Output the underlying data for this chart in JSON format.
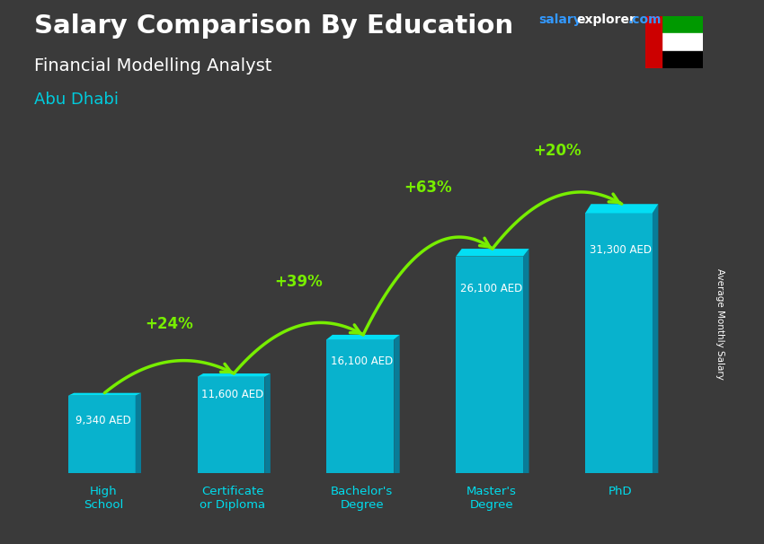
{
  "title": "Salary Comparison By Education",
  "subtitle": "Financial Modelling Analyst",
  "city": "Abu Dhabi",
  "ylabel": "Average Monthly Salary",
  "categories": [
    "High\nSchool",
    "Certificate\nor Diploma",
    "Bachelor's\nDegree",
    "Master's\nDegree",
    "PhD"
  ],
  "values": [
    9340,
    11600,
    16100,
    26100,
    31300
  ],
  "value_labels": [
    "9,340 AED",
    "11,600 AED",
    "16,100 AED",
    "26,100 AED",
    "31,300 AED"
  ],
  "pct_labels": [
    "+24%",
    "+39%",
    "+63%",
    "+20%"
  ],
  "bar_color_front": "#00c8e8",
  "bar_color_side": "#0088aa",
  "bar_color_top": "#00e8ff",
  "arrow_color": "#77ee00",
  "title_color": "#ffffff",
  "subtitle_color": "#ffffff",
  "city_color": "#00ccdd",
  "value_label_color": "#ffffff",
  "tick_label_color": "#00ddee",
  "ylabel_color": "#ffffff",
  "bg_color": "#3a3a3a",
  "brand_color_salary": "#3399ff",
  "brand_color_explorer": "#ffffff",
  "brand_color_com": "#3399ff",
  "figsize": [
    8.5,
    6.06
  ],
  "dpi": 100
}
